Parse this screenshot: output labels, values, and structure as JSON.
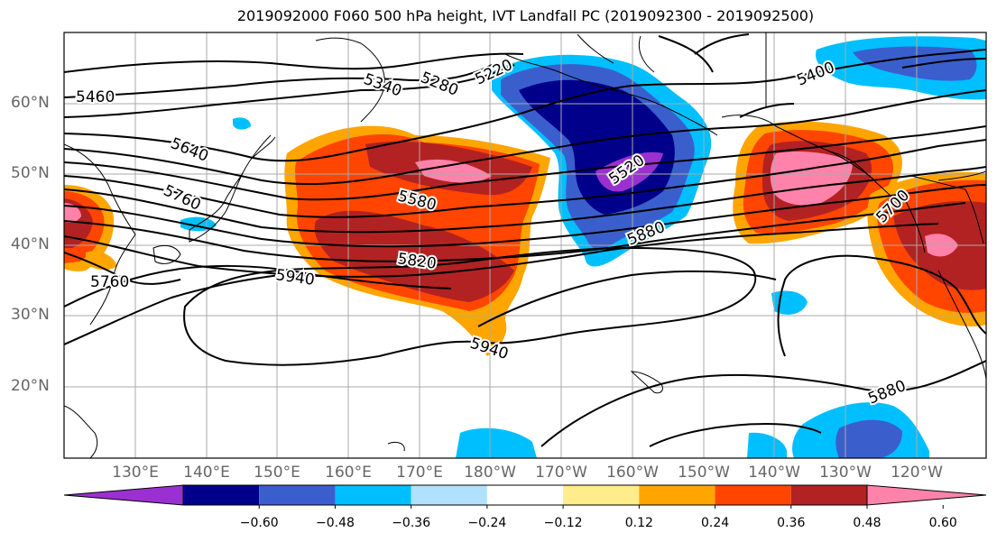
{
  "title": "2019092000 F060 500 hPa height, IVT Landfall PC (2019092300 - 2019092500)",
  "lat_labels": [
    "60°N",
    "50°N",
    "40°N",
    "30°N",
    "20°N"
  ],
  "lon_labels": [
    "130°E",
    "140°E",
    "150°E",
    "160°E",
    "170°E",
    "180°W",
    "170°W",
    "160°W",
    "150°W",
    "140°W",
    "130°W",
    "120°W"
  ],
  "contour_labels": [
    "5460",
    "5340",
    "5280",
    "5220",
    "5640",
    "5760",
    "5580",
    "5520",
    "5880",
    "5820",
    "5940",
    "5940",
    "5760",
    "5400",
    "5700",
    "5880"
  ],
  "colorbar": {
    "colors": [
      "#9b30d0",
      "#00008b",
      "#3a5fcd",
      "#00bfff",
      "#b0e2ff",
      "#ffffff",
      "#ffec8b",
      "#ffa500",
      "#ff4500",
      "#b22222",
      "#ff82ab"
    ],
    "ticks": [
      "−0.60",
      "−0.48",
      "−0.36",
      "−0.24",
      "−0.12",
      "0.12",
      "0.24",
      "0.36",
      "0.48",
      "0.60"
    ]
  }
}
